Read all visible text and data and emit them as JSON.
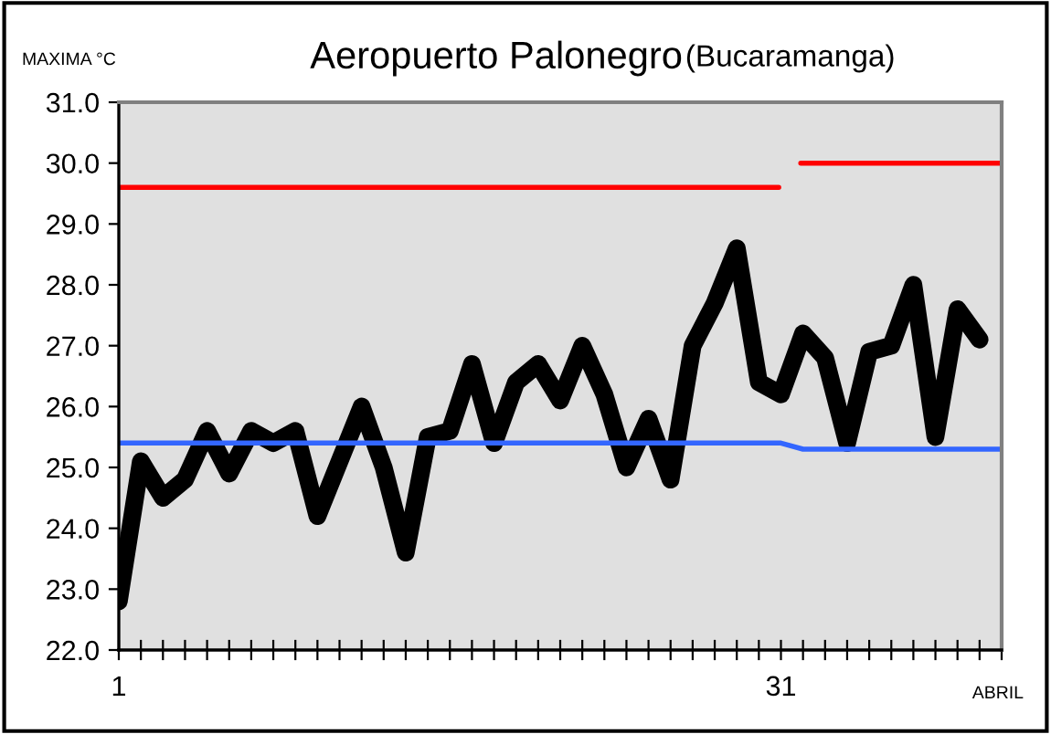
{
  "chart_data": {
    "type": "line",
    "title": "Aeropuerto Palonegro",
    "subtitle": "(Bucaramanga)",
    "ylabel": "MAXIMA °C",
    "annotations": [
      "ABRIL"
    ],
    "series": [
      {
        "color": "#000000",
        "x": [
          1,
          2,
          3,
          4,
          5,
          6,
          7,
          8,
          9,
          10,
          11,
          12,
          13,
          14,
          15,
          16,
          17,
          18,
          19,
          20,
          21,
          22,
          23,
          24,
          25,
          26,
          27,
          28,
          29,
          30,
          31,
          32,
          33,
          34,
          35,
          36,
          37,
          38,
          39,
          40
        ],
        "values": [
          22.8,
          25.1,
          24.5,
          24.8,
          25.6,
          24.9,
          25.6,
          25.4,
          25.6,
          24.2,
          25.1,
          26.0,
          25.0,
          23.6,
          25.5,
          25.6,
          26.7,
          25.4,
          26.4,
          26.7,
          26.1,
          27.0,
          26.2,
          25.0,
          25.8,
          24.8,
          27.0,
          27.7,
          28.6,
          26.4,
          26.2,
          27.2,
          26.8,
          25.4,
          26.9,
          27.0,
          28.0,
          25.5,
          27.6,
          27.1
        ]
      },
      {
        "color": "#ff0000",
        "x": [
          1,
          30.9,
          31.4,
          31.9,
          41
        ],
        "values": [
          29.6,
          29.6,
          null,
          30.0,
          30.0
        ]
      },
      {
        "color": "#3366ff",
        "x": [
          1,
          31,
          32,
          41
        ],
        "values": [
          25.4,
          25.4,
          25.3,
          25.3
        ]
      }
    ],
    "xlim": [
      1,
      41
    ],
    "xticks": [
      1,
      {
        "value": 2,
        "label": null
      },
      {
        "value": 3,
        "label": null
      },
      {
        "value": 4,
        "label": null
      },
      {
        "value": 5,
        "label": null
      },
      {
        "value": 6,
        "label": null
      },
      {
        "value": 7,
        "label": null
      },
      {
        "value": 8,
        "label": null
      },
      {
        "value": 9,
        "label": null
      },
      {
        "value": 10,
        "label": null
      },
      {
        "value": 11,
        "label": null
      },
      {
        "value": 12,
        "label": null
      },
      {
        "value": 13,
        "label": null
      },
      {
        "value": 14,
        "label": null
      },
      {
        "value": 15,
        "label": null
      },
      {
        "value": 16,
        "label": null
      },
      {
        "value": 17,
        "label": null
      },
      {
        "value": 18,
        "label": null
      },
      {
        "value": 19,
        "label": null
      },
      {
        "value": 20,
        "label": null
      },
      {
        "value": 21,
        "label": null
      },
      {
        "value": 22,
        "label": null
      },
      {
        "value": 23,
        "label": null
      },
      {
        "value": 24,
        "label": null
      },
      {
        "value": 25,
        "label": null
      },
      {
        "value": 26,
        "label": null
      },
      {
        "value": 27,
        "label": null
      },
      {
        "value": 28,
        "label": null
      },
      {
        "value": 29,
        "label": null
      },
      {
        "value": 30,
        "label": null
      },
      31,
      {
        "value": 32,
        "label": null
      },
      {
        "value": 33,
        "label": null
      },
      {
        "value": 34,
        "label": null
      },
      {
        "value": 35,
        "label": null
      },
      {
        "value": 36,
        "label": null
      },
      {
        "value": 37,
        "label": null
      },
      {
        "value": 38,
        "label": null
      },
      {
        "value": 39,
        "label": null
      },
      {
        "value": 40,
        "label": null
      },
      {
        "value": 41,
        "label": null
      }
    ],
    "ylim": [
      22.0,
      31.0
    ],
    "yticks": [
      {
        "value": 22,
        "label": "22.0"
      },
      {
        "value": 23,
        "label": "23.0"
      },
      {
        "value": 24,
        "label": "24.0"
      },
      {
        "value": 25,
        "label": "25.0"
      },
      {
        "value": 26,
        "label": "26.0"
      },
      {
        "value": 27,
        "label": "27.0"
      },
      {
        "value": 28,
        "label": "28.0"
      },
      {
        "value": 29,
        "label": "29.0"
      },
      {
        "value": 30,
        "label": "30.0"
      },
      {
        "value": 31,
        "label": "31.0"
      }
    ],
    "grid": false,
    "legend": false,
    "marker": "none",
    "line_style": "solid"
  }
}
